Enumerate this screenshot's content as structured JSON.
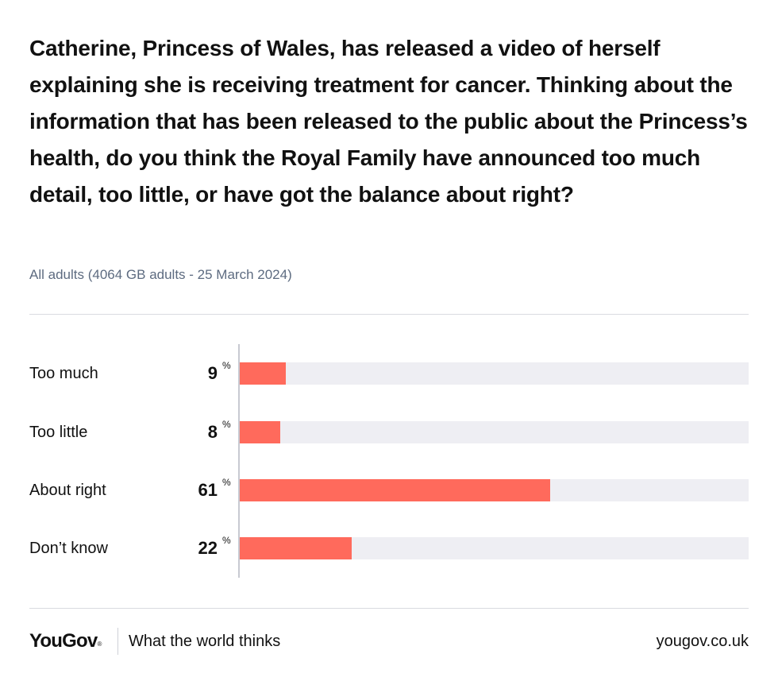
{
  "header": {
    "title": "Catherine, Princess of Wales, has released a video of herself explaining she is receiving treatment for cancer. Thinking about the information that has been released to the public about the Princess’s health, do you think the Royal Family have announced too much detail, too little, or have got the balance about right?",
    "subtitle": "All adults (4064 GB adults - 25 March 2024)"
  },
  "chart_data": {
    "type": "bar",
    "orientation": "horizontal",
    "categories": [
      "Too much",
      "Too little",
      "About right",
      "Don’t know"
    ],
    "values": [
      9,
      8,
      61,
      22
    ],
    "unit": "%",
    "xlim": [
      0,
      100
    ],
    "colors": {
      "bar": "#ff6a5c",
      "track": "#eeeef3"
    }
  },
  "footer": {
    "logo": "YouGov",
    "logo_mark": "®",
    "tagline": "What the world thinks",
    "url": "yougov.co.uk"
  }
}
